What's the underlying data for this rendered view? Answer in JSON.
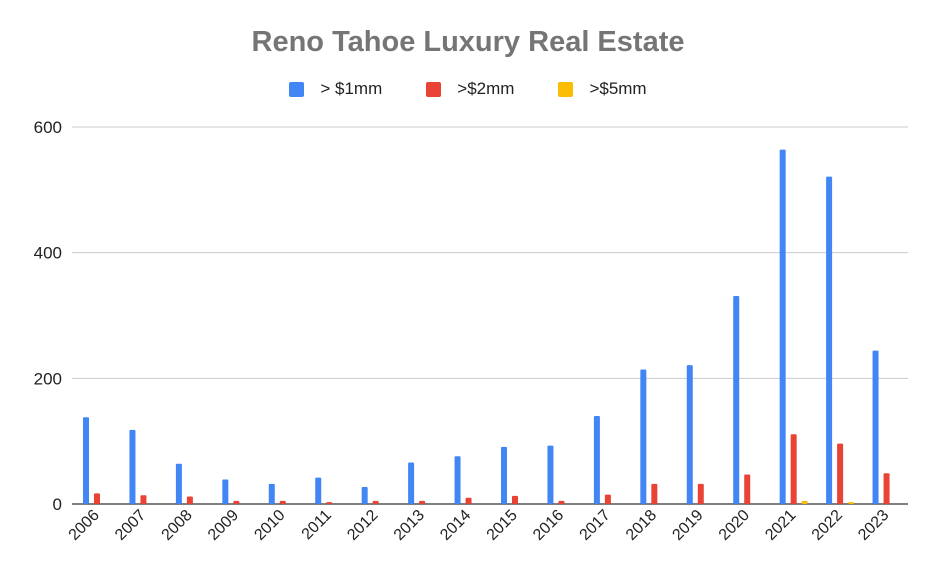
{
  "chart_data": {
    "type": "bar",
    "title": "Reno Tahoe Luxury Real Estate",
    "xlabel": "",
    "ylabel": "",
    "ylim": [
      0,
      600
    ],
    "yticks": [
      0,
      200,
      400,
      600
    ],
    "grid": true,
    "legend_position": "top",
    "categories": [
      "2006",
      "2007",
      "2008",
      "2009",
      "2010",
      "2011",
      "2012",
      "2013",
      "2014",
      "2015",
      "2016",
      "2017",
      "2018",
      "2019",
      "2020",
      "2021",
      "2022",
      "2023"
    ],
    "series": [
      {
        "name": "> $1mm",
        "color": "#4285f4",
        "values": [
          138,
          118,
          64,
          39,
          32,
          42,
          27,
          66,
          76,
          91,
          93,
          140,
          214,
          221,
          331,
          564,
          521,
          244
        ]
      },
      {
        "name": ">$2mm",
        "color": "#ea4335",
        "values": [
          17,
          14,
          12,
          5,
          5,
          3,
          5,
          5,
          10,
          13,
          5,
          15,
          32,
          32,
          47,
          111,
          96,
          49
        ]
      },
      {
        "name": ">$5mm",
        "color": "#fbbc04",
        "values": [
          0,
          0,
          0,
          0,
          0,
          0,
          0,
          0,
          0,
          0,
          0,
          0,
          0,
          0,
          0,
          5,
          3,
          0
        ]
      }
    ]
  }
}
